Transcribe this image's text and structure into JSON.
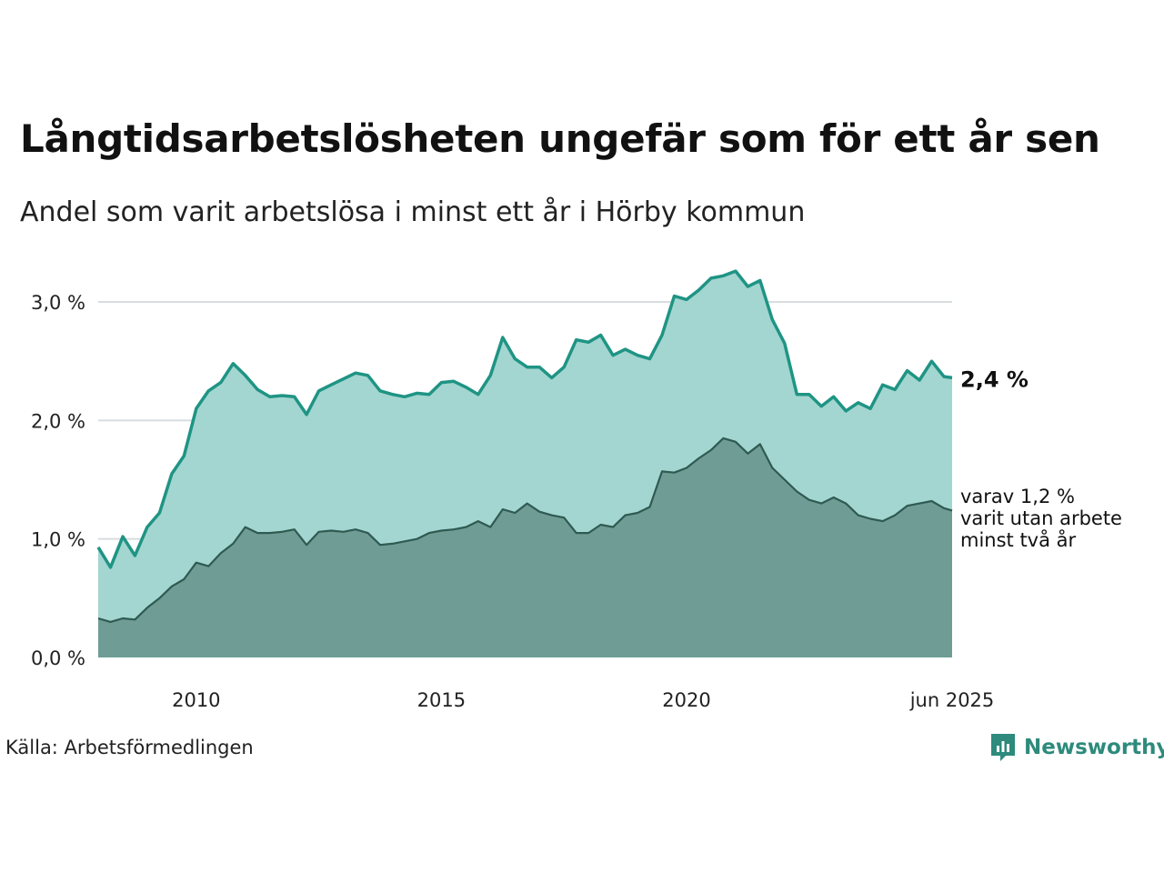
{
  "title": "Långtidsarbetslösheten ungefär som för ett år sen",
  "subtitle": "Andel som varit arbetslösa i minst ett år i Hörby kommun",
  "source": "Källa: Arbetsförmedlingen",
  "brand": {
    "name": "Newsworthy",
    "icon": "newsworthy-logo-icon",
    "color": "#2d8a7c"
  },
  "colors": {
    "total_line": "#1f9484",
    "total_fill": "#a3d6d0",
    "sub_line": "#2f5a52",
    "sub_fill": "#6f9d96",
    "grid": "#d8dde0"
  },
  "chart_data": {
    "type": "area",
    "title": "Långtidsarbetslösheten ungefär som för ett år sen",
    "subtitle": "Andel som varit arbetslösa i minst ett år i Hörby kommun",
    "xlabel": "",
    "ylabel": "",
    "xlim": [
      "2008-01",
      "2025-06"
    ],
    "ylim": [
      0,
      3.3
    ],
    "y_ticks": [
      {
        "value": 0,
        "label": "0,0 %"
      },
      {
        "value": 1,
        "label": "1,0 %"
      },
      {
        "value": 2,
        "label": "2,0 %"
      },
      {
        "value": 3,
        "label": "3,0 %"
      }
    ],
    "x_ticks": [
      {
        "x": "2010-01",
        "label": "2010"
      },
      {
        "x": "2015-01",
        "label": "2015"
      },
      {
        "x": "2020-01",
        "label": "2020"
      },
      {
        "x": "2025-06",
        "label": "jun 2025"
      }
    ],
    "grid": true,
    "end_labels": {
      "total": "2,4 %",
      "sub": [
        "varav 1,2 %",
        "varit utan arbete",
        "minst två år"
      ]
    },
    "series": [
      {
        "key": "total",
        "points": [
          [
            "2008-01",
            0.93
          ],
          [
            "2008-04",
            0.76
          ],
          [
            "2008-07",
            1.02
          ],
          [
            "2008-10",
            0.86
          ],
          [
            "2009-01",
            1.1
          ],
          [
            "2009-04",
            1.22
          ],
          [
            "2009-07",
            1.55
          ],
          [
            "2009-10",
            1.7
          ],
          [
            "2010-01",
            2.1
          ],
          [
            "2010-04",
            2.25
          ],
          [
            "2010-07",
            2.32
          ],
          [
            "2010-10",
            2.48
          ],
          [
            "2011-01",
            2.38
          ],
          [
            "2011-04",
            2.26
          ],
          [
            "2011-07",
            2.2
          ],
          [
            "2011-10",
            2.21
          ],
          [
            "2012-01",
            2.2
          ],
          [
            "2012-04",
            2.05
          ],
          [
            "2012-07",
            2.25
          ],
          [
            "2012-10",
            2.3
          ],
          [
            "2013-01",
            2.35
          ],
          [
            "2013-04",
            2.4
          ],
          [
            "2013-07",
            2.38
          ],
          [
            "2013-10",
            2.25
          ],
          [
            "2014-01",
            2.22
          ],
          [
            "2014-04",
            2.2
          ],
          [
            "2014-07",
            2.23
          ],
          [
            "2014-10",
            2.22
          ],
          [
            "2015-01",
            2.32
          ],
          [
            "2015-04",
            2.33
          ],
          [
            "2015-07",
            2.28
          ],
          [
            "2015-10",
            2.22
          ],
          [
            "2016-01",
            2.38
          ],
          [
            "2016-04",
            2.7
          ],
          [
            "2016-07",
            2.52
          ],
          [
            "2016-10",
            2.45
          ],
          [
            "2017-01",
            2.45
          ],
          [
            "2017-04",
            2.36
          ],
          [
            "2017-07",
            2.45
          ],
          [
            "2017-10",
            2.68
          ],
          [
            "2018-01",
            2.66
          ],
          [
            "2018-04",
            2.72
          ],
          [
            "2018-07",
            2.55
          ],
          [
            "2018-10",
            2.6
          ],
          [
            "2019-01",
            2.55
          ],
          [
            "2019-04",
            2.52
          ],
          [
            "2019-07",
            2.72
          ],
          [
            "2019-10",
            3.05
          ],
          [
            "2020-01",
            3.02
          ],
          [
            "2020-04",
            3.1
          ],
          [
            "2020-07",
            3.2
          ],
          [
            "2020-10",
            3.22
          ],
          [
            "2021-01",
            3.26
          ],
          [
            "2021-04",
            3.13
          ],
          [
            "2021-07",
            3.18
          ],
          [
            "2021-10",
            2.85
          ],
          [
            "2022-01",
            2.65
          ],
          [
            "2022-04",
            2.22
          ],
          [
            "2022-07",
            2.22
          ],
          [
            "2022-10",
            2.12
          ],
          [
            "2023-01",
            2.2
          ],
          [
            "2023-04",
            2.08
          ],
          [
            "2023-07",
            2.15
          ],
          [
            "2023-10",
            2.1
          ],
          [
            "2024-01",
            2.3
          ],
          [
            "2024-04",
            2.26
          ],
          [
            "2024-07",
            2.42
          ],
          [
            "2024-10",
            2.34
          ],
          [
            "2025-01",
            2.5
          ],
          [
            "2025-04",
            2.37
          ],
          [
            "2025-06",
            2.36
          ]
        ]
      },
      {
        "key": "sub",
        "points": [
          [
            "2008-01",
            0.33
          ],
          [
            "2008-04",
            0.3
          ],
          [
            "2008-07",
            0.33
          ],
          [
            "2008-10",
            0.32
          ],
          [
            "2009-01",
            0.42
          ],
          [
            "2009-04",
            0.5
          ],
          [
            "2009-07",
            0.6
          ],
          [
            "2009-10",
            0.66
          ],
          [
            "2010-01",
            0.8
          ],
          [
            "2010-04",
            0.77
          ],
          [
            "2010-07",
            0.88
          ],
          [
            "2010-10",
            0.96
          ],
          [
            "2011-01",
            1.1
          ],
          [
            "2011-04",
            1.05
          ],
          [
            "2011-07",
            1.05
          ],
          [
            "2011-10",
            1.06
          ],
          [
            "2012-01",
            1.08
          ],
          [
            "2012-04",
            0.95
          ],
          [
            "2012-07",
            1.06
          ],
          [
            "2012-10",
            1.07
          ],
          [
            "2013-01",
            1.06
          ],
          [
            "2013-04",
            1.08
          ],
          [
            "2013-07",
            1.05
          ],
          [
            "2013-10",
            0.95
          ],
          [
            "2014-01",
            0.96
          ],
          [
            "2014-04",
            0.98
          ],
          [
            "2014-07",
            1.0
          ],
          [
            "2014-10",
            1.05
          ],
          [
            "2015-01",
            1.07
          ],
          [
            "2015-04",
            1.08
          ],
          [
            "2015-07",
            1.1
          ],
          [
            "2015-10",
            1.15
          ],
          [
            "2016-01",
            1.1
          ],
          [
            "2016-04",
            1.25
          ],
          [
            "2016-07",
            1.22
          ],
          [
            "2016-10",
            1.3
          ],
          [
            "2017-01",
            1.23
          ],
          [
            "2017-04",
            1.2
          ],
          [
            "2017-07",
            1.18
          ],
          [
            "2017-10",
            1.05
          ],
          [
            "2018-01",
            1.05
          ],
          [
            "2018-04",
            1.12
          ],
          [
            "2018-07",
            1.1
          ],
          [
            "2018-10",
            1.2
          ],
          [
            "2019-01",
            1.22
          ],
          [
            "2019-04",
            1.27
          ],
          [
            "2019-07",
            1.57
          ],
          [
            "2019-10",
            1.56
          ],
          [
            "2020-01",
            1.6
          ],
          [
            "2020-04",
            1.68
          ],
          [
            "2020-07",
            1.75
          ],
          [
            "2020-10",
            1.85
          ],
          [
            "2021-01",
            1.82
          ],
          [
            "2021-04",
            1.72
          ],
          [
            "2021-07",
            1.8
          ],
          [
            "2021-10",
            1.6
          ],
          [
            "2022-01",
            1.5
          ],
          [
            "2022-04",
            1.4
          ],
          [
            "2022-07",
            1.33
          ],
          [
            "2022-10",
            1.3
          ],
          [
            "2023-01",
            1.35
          ],
          [
            "2023-04",
            1.3
          ],
          [
            "2023-07",
            1.2
          ],
          [
            "2023-10",
            1.17
          ],
          [
            "2024-01",
            1.15
          ],
          [
            "2024-04",
            1.2
          ],
          [
            "2024-07",
            1.28
          ],
          [
            "2024-10",
            1.3
          ],
          [
            "2025-01",
            1.32
          ],
          [
            "2025-04",
            1.26
          ],
          [
            "2025-06",
            1.24
          ]
        ]
      }
    ]
  }
}
